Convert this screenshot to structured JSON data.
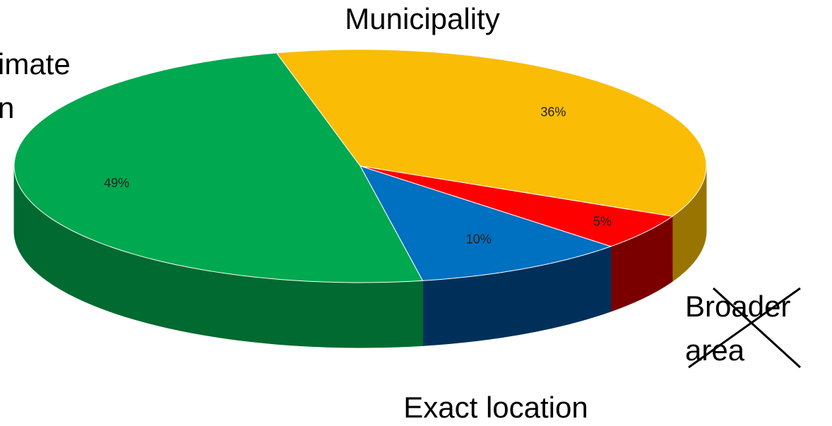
{
  "chart_data": {
    "type": "pie3d",
    "categories": [
      [
        "Municipality"
      ],
      [
        "Broader",
        "area"
      ],
      [
        "Exact location"
      ],
      [
        "imate",
        "n"
      ]
    ],
    "values": [
      36,
      5,
      10,
      49
    ],
    "value_labels": [
      "36%",
      "5%",
      "10%",
      "49%"
    ],
    "colors": [
      "#fbbc05",
      "#ff0000",
      "#0070c0",
      "#00a84f"
    ],
    "side_colors": [
      "#9a7400",
      "#7a0000",
      "#00305a",
      "#006a30"
    ]
  }
}
